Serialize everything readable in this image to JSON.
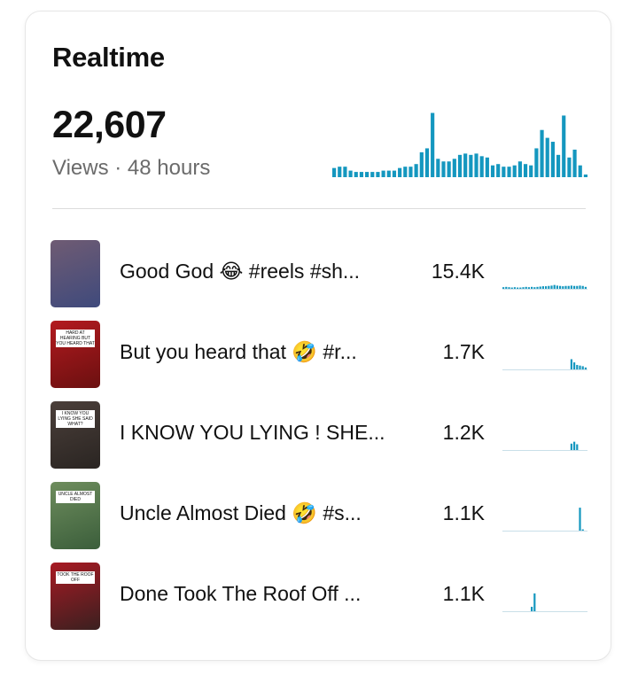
{
  "header": {
    "title": "Realtime"
  },
  "total": {
    "value": "22,607",
    "subtitle": "Views · 48 hours"
  },
  "colors": {
    "accent": "#1497bf",
    "baseline": "#c9dfe8",
    "divider": "#dcdcdc"
  },
  "main_sparkline": [
    0.14,
    0.16,
    0.16,
    0.1,
    0.08,
    0.08,
    0.08,
    0.08,
    0.08,
    0.1,
    0.1,
    0.1,
    0.14,
    0.16,
    0.16,
    0.2,
    0.38,
    0.44,
    0.98,
    0.28,
    0.24,
    0.24,
    0.28,
    0.34,
    0.36,
    0.34,
    0.36,
    0.32,
    0.3,
    0.18,
    0.2,
    0.16,
    0.16,
    0.18,
    0.24,
    0.2,
    0.18,
    0.44,
    0.72,
    0.6,
    0.54,
    0.34,
    0.94,
    0.3,
    0.42,
    0.18,
    0.04
  ],
  "videos": [
    {
      "title": "Good God 😂 #reels #sh...",
      "views": "15.4K",
      "thumb_colors": [
        "#6f5b73",
        "#3f4a7c"
      ],
      "caption": "",
      "spark": [
        0.05,
        0.06,
        0.05,
        0.04,
        0.05,
        0.04,
        0.04,
        0.05,
        0.06,
        0.05,
        0.06,
        0.05,
        0.06,
        0.07,
        0.08,
        0.08,
        0.09,
        0.1,
        0.12,
        0.1,
        0.09,
        0.08,
        0.09,
        0.09,
        0.1,
        0.09,
        0.09,
        0.1,
        0.09,
        0.06
      ]
    },
    {
      "title": "But you heard that 🤣 #r...",
      "views": "1.7K",
      "thumb_colors": [
        "#b31a1f",
        "#6b1010"
      ],
      "caption": "HARD AT HEARING BUT YOU HEARD THAT",
      "spark": [
        0,
        0,
        0,
        0,
        0,
        0,
        0,
        0,
        0,
        0,
        0,
        0,
        0,
        0,
        0,
        0,
        0,
        0,
        0,
        0,
        0,
        0,
        0,
        0,
        0.32,
        0.22,
        0.14,
        0.12,
        0.1,
        0.06
      ]
    },
    {
      "title": "I KNOW YOU LYING ! SHE...",
      "views": "1.2K",
      "thumb_colors": [
        "#4b3f3a",
        "#2a2522"
      ],
      "caption": "I KNOW YOU LYING SHE SAID WHAT?",
      "spark": [
        0,
        0,
        0,
        0,
        0,
        0,
        0,
        0,
        0,
        0,
        0,
        0,
        0,
        0,
        0,
        0,
        0,
        0,
        0,
        0,
        0,
        0,
        0,
        0,
        0.2,
        0.26,
        0.18,
        0,
        0,
        0
      ]
    },
    {
      "title": "Uncle Almost Died 🤣 #s...",
      "views": "1.1K",
      "thumb_colors": [
        "#6e8d5d",
        "#3b5e3b"
      ],
      "caption": "UNCLE ALMOST DIED",
      "spark": [
        0,
        0,
        0,
        0,
        0,
        0,
        0,
        0,
        0,
        0,
        0,
        0,
        0,
        0,
        0,
        0,
        0,
        0,
        0,
        0,
        0,
        0,
        0,
        0,
        0,
        0,
        0,
        0.72,
        0.04,
        0
      ]
    },
    {
      "title": "Done Took The Roof Off ...",
      "views": "1.1K",
      "thumb_colors": [
        "#a81a23",
        "#3a2020"
      ],
      "caption": "TOOK THE ROOF OFF",
      "spark": [
        0,
        0,
        0,
        0,
        0,
        0,
        0,
        0,
        0,
        0,
        0.14,
        0.56,
        0,
        0,
        0,
        0,
        0,
        0,
        0,
        0,
        0,
        0,
        0,
        0,
        0,
        0,
        0,
        0,
        0,
        0
      ]
    }
  ]
}
